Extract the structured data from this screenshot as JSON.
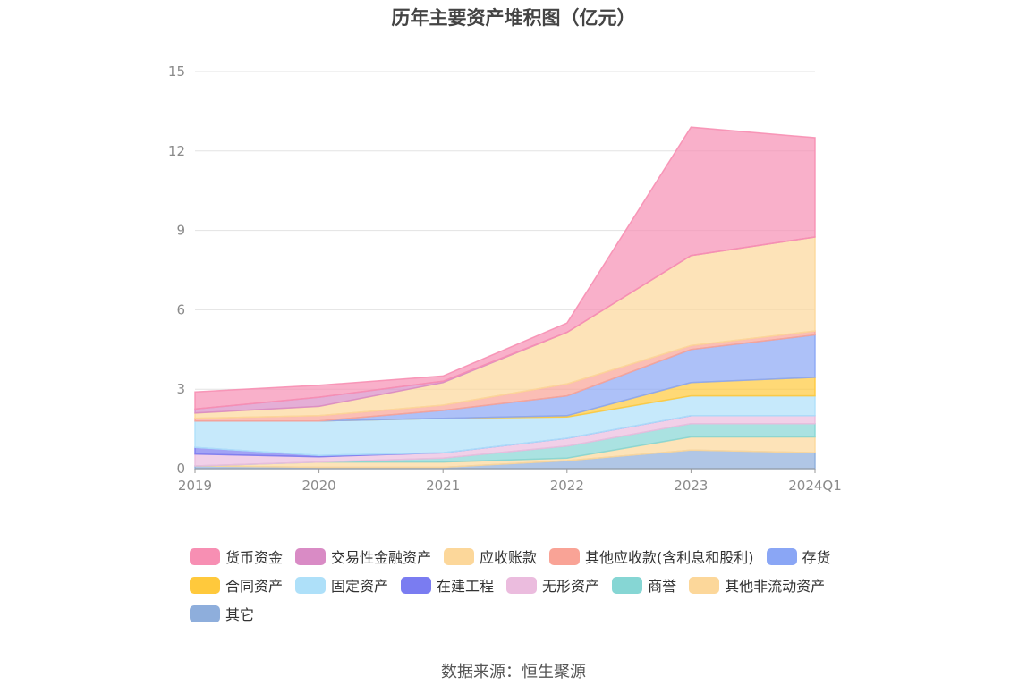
{
  "chart_data": {
    "type": "area",
    "stacked": true,
    "title": "历年主要资产堆积图（亿元）",
    "x": [
      "2019",
      "2020",
      "2021",
      "2022",
      "2023",
      "2024Q1"
    ],
    "y_ticks": [
      "0",
      "3",
      "6",
      "9",
      "12",
      "15"
    ],
    "ylim": [
      0,
      15
    ],
    "grid": true,
    "legend_position": "bottom",
    "series": [
      {
        "name": "货币资金",
        "color": "#f78fb3",
        "values": [
          0.65,
          0.45,
          0.2,
          0.35,
          4.85,
          3.75
        ]
      },
      {
        "name": "交易性金融资产",
        "color": "#d98bc5",
        "values": [
          0.15,
          0.35,
          0.05,
          0.0,
          0.0,
          0.0
        ]
      },
      {
        "name": "应收账款",
        "color": "#fcd79a",
        "values": [
          0.2,
          0.35,
          0.85,
          1.95,
          3.4,
          3.55
        ]
      },
      {
        "name": "其他应收款(含利息和股利)",
        "color": "#f9a396",
        "values": [
          0.1,
          0.2,
          0.2,
          0.45,
          0.15,
          0.15
        ]
      },
      {
        "name": "存货",
        "color": "#8aa6f5",
        "values": [
          0.0,
          0.0,
          0.3,
          0.75,
          1.25,
          1.6
        ]
      },
      {
        "name": "合同资产",
        "color": "#ffc93c",
        "values": [
          0.0,
          0.0,
          0.0,
          0.05,
          0.5,
          0.7
        ]
      },
      {
        "name": "固定资产",
        "color": "#aee0f9",
        "values": [
          1.0,
          1.3,
          1.3,
          0.8,
          0.75,
          0.75
        ]
      },
      {
        "name": "在建工程",
        "color": "#7a7cf1",
        "values": [
          0.25,
          0.05,
          0.0,
          0.0,
          0.0,
          0.0
        ]
      },
      {
        "name": "无形资产",
        "color": "#ebbcde",
        "values": [
          0.45,
          0.2,
          0.2,
          0.3,
          0.3,
          0.3
        ]
      },
      {
        "name": "商誉",
        "color": "#86d6d4",
        "values": [
          0.0,
          0.0,
          0.15,
          0.45,
          0.5,
          0.5
        ]
      },
      {
        "name": "其他非流动资产",
        "color": "#fcd79a",
        "values": [
          0.0,
          0.2,
          0.2,
          0.1,
          0.5,
          0.6
        ]
      },
      {
        "name": "其它",
        "color": "#8eaedc",
        "values": [
          0.1,
          0.05,
          0.05,
          0.3,
          0.7,
          0.6
        ]
      }
    ]
  },
  "source_note": "数据来源：恒生聚源"
}
